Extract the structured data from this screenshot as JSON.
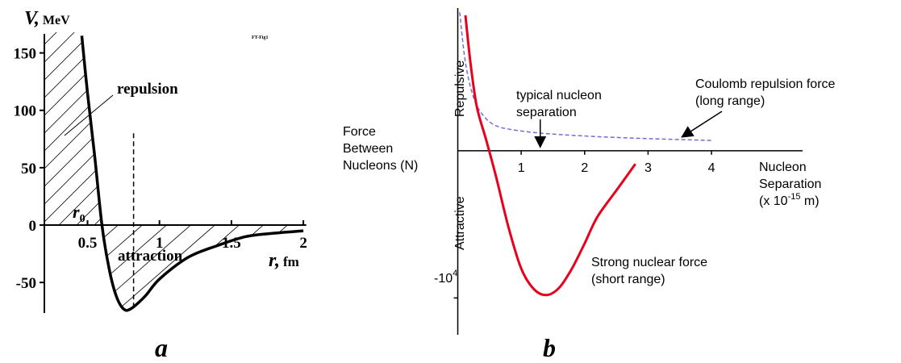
{
  "chart_data": [
    {
      "type": "line",
      "panel_label": "a",
      "ylabel_var": "V,",
      "ylabel_unit": "MeV",
      "xlabel_var": "r,",
      "xlabel_unit": "fm",
      "tag": "FT-Fig1",
      "yticks": [
        {
          "value": 150,
          "label": "150"
        },
        {
          "value": 100,
          "label": "100"
        },
        {
          "value": 50,
          "label": "50"
        },
        {
          "value": 0,
          "label": "0"
        },
        {
          "value": -50,
          "label": "-50"
        }
      ],
      "xticks": [
        {
          "value": 0.5,
          "label": "0.5"
        },
        {
          "value": 1,
          "label": "1"
        },
        {
          "value": 1.5,
          "label": "1.5"
        },
        {
          "value": 2,
          "label": "2"
        }
      ],
      "xlim": [
        0.2,
        2.05
      ],
      "ylim": [
        -78,
        168
      ],
      "series": [
        {
          "x": [
            0.46,
            0.5,
            0.55,
            0.6,
            0.65,
            0.7,
            0.75,
            0.8,
            0.9,
            1.0,
            1.2,
            1.4,
            1.6,
            1.8,
            2.0
          ],
          "y": [
            165,
            115,
            60,
            0,
            -38,
            -62,
            -73,
            -73,
            -62,
            -47,
            -28,
            -18,
            -10,
            -7,
            -5
          ]
        }
      ],
      "r0": {
        "label": "r",
        "sub": "0",
        "x": 0.6
      },
      "minimum_line_x": 0.82,
      "annotations": {
        "repulsion": "repulsion",
        "attraction": "attraction"
      }
    },
    {
      "type": "line",
      "panel_label": "b",
      "ylabel": "Force Between Nucleons (N)",
      "ylabel_lines": [
        "Force",
        "Between",
        "Nucleons (N)"
      ],
      "ytop_label": "Repulsive",
      "ybottom_label": "Attractive",
      "ytick_label": "-10",
      "ytick_exp": "4",
      "ytick_value": -10000,
      "xlabel_lines": [
        "Nucleon",
        "Separation"
      ],
      "xunit_base": "(x 10",
      "xunit_exp": "-15",
      "xunit_rest": " m)",
      "xticks": [
        {
          "value": 1,
          "label": "1"
        },
        {
          "value": 2,
          "label": "2"
        },
        {
          "value": 3,
          "label": "3"
        },
        {
          "value": 4,
          "label": "4"
        }
      ],
      "xlim": [
        -0.35,
        5.5
      ],
      "ylim": [
        -12500,
        9800
      ],
      "series": [
        {
          "name": "Strong nuclear force (short range)",
          "label_lines": [
            "Strong nuclear force",
            "(short range)"
          ],
          "color": "#e8001c",
          "style": "solid",
          "x": [
            0.12,
            0.2,
            0.3,
            0.45,
            0.6,
            0.8,
            1.0,
            1.2,
            1.4,
            1.6,
            1.8,
            2.0,
            2.2,
            2.5,
            2.8
          ],
          "y": [
            9200,
            6000,
            3000,
            700,
            -1700,
            -5200,
            -8000,
            -9400,
            -9800,
            -9300,
            -8000,
            -6300,
            -4500,
            -2700,
            -900
          ]
        },
        {
          "name": "Coulomb repulsion force (long range)",
          "label_lines": [
            "Coulomb repulsion force",
            "(long range)"
          ],
          "color": "#6f6fd8",
          "style": "dashed",
          "x": [
            0.03,
            0.12,
            0.25,
            0.4,
            0.6,
            0.9,
            1.3,
            1.8,
            2.5,
            3.2,
            4.0
          ],
          "y": [
            9400,
            6000,
            3600,
            2400,
            1700,
            1400,
            1200,
            1050,
            900,
            800,
            700
          ]
        }
      ],
      "separation_label_lines": [
        "typical nucleon",
        "separation"
      ],
      "separation_x": 1.3
    }
  ]
}
